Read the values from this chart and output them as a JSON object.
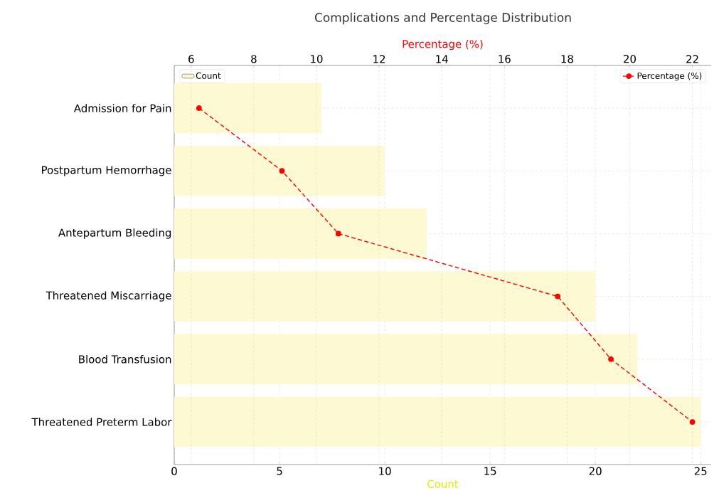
{
  "chart_data": {
    "type": "bar",
    "orientation": "horizontal",
    "title": "Complications and Percentage Distribution",
    "categories": [
      "Admission for Pain",
      "Postpartum Hemorrhage",
      "Antepartum Bleeding",
      "Threatened Miscarriage",
      "Blood Transfusion",
      "Threatened Preterm Labor"
    ],
    "series": [
      {
        "name": "Count",
        "color": "#fdf9d3",
        "values": [
          7,
          10,
          12,
          20,
          22,
          25
        ]
      },
      {
        "name": "Percentage (%)",
        "type": "line",
        "axis": "x2",
        "color": "#ff0000",
        "marker": "circle",
        "line_style": "dashed",
        "values": [
          6.25,
          8.9,
          10.7,
          17.7,
          19.4,
          22.0
        ]
      }
    ],
    "xlabel": "Count",
    "x2label": "Percentage (%)",
    "xlim": [
      0,
      25.5
    ],
    "xticks": [
      0,
      5,
      10,
      15,
      20,
      25
    ],
    "x2lim": [
      5.46,
      22.6
    ],
    "x2ticks": [
      6,
      8,
      10,
      12,
      14,
      16,
      18,
      20,
      22
    ],
    "grid": true,
    "legend": "top"
  }
}
